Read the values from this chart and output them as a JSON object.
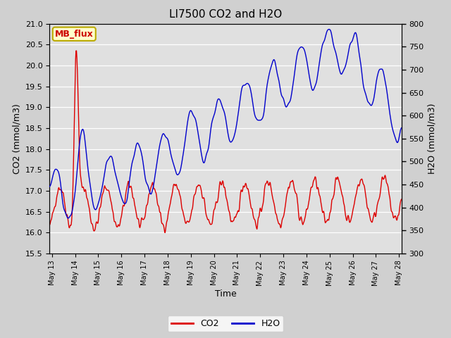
{
  "title": "LI7500 CO2 and H2O",
  "xlabel": "Time",
  "ylabel_left": "CO2 (mmol/m3)",
  "ylabel_right": "H2O (mmol/m3)",
  "ylim_left": [
    15.5,
    21.0
  ],
  "ylim_right": [
    300,
    800
  ],
  "yticks_left": [
    15.5,
    16.0,
    16.5,
    17.0,
    17.5,
    18.0,
    18.5,
    19.0,
    19.5,
    20.0,
    20.5,
    21.0
  ],
  "yticks_right": [
    300,
    350,
    400,
    450,
    500,
    550,
    600,
    650,
    700,
    750,
    800
  ],
  "annotation_text": "MB_flux",
  "annotation_color": "#cc0000",
  "annotation_bg": "#ffffcc",
  "annotation_border": "#bbaa00",
  "co2_color": "#dd0000",
  "h2o_color": "#0000cc",
  "fig_bg": "#d0d0d0",
  "plot_bg": "#e0e0e0",
  "grid_color": "#ffffff",
  "n_points": 800,
  "x_start_day": 12.9,
  "x_end_day": 28.1,
  "xtick_days": [
    13,
    14,
    15,
    16,
    17,
    18,
    19,
    20,
    21,
    22,
    23,
    24,
    25,
    26,
    27,
    28
  ],
  "xtick_labels": [
    "May 13",
    "May 14",
    "May 15",
    "May 16",
    "May 17",
    "May 18",
    "May 19",
    "May 20",
    "May 21",
    "May 22",
    "May 23",
    "May 24",
    "May 25",
    "May 26",
    "May 27",
    "May 28"
  ]
}
